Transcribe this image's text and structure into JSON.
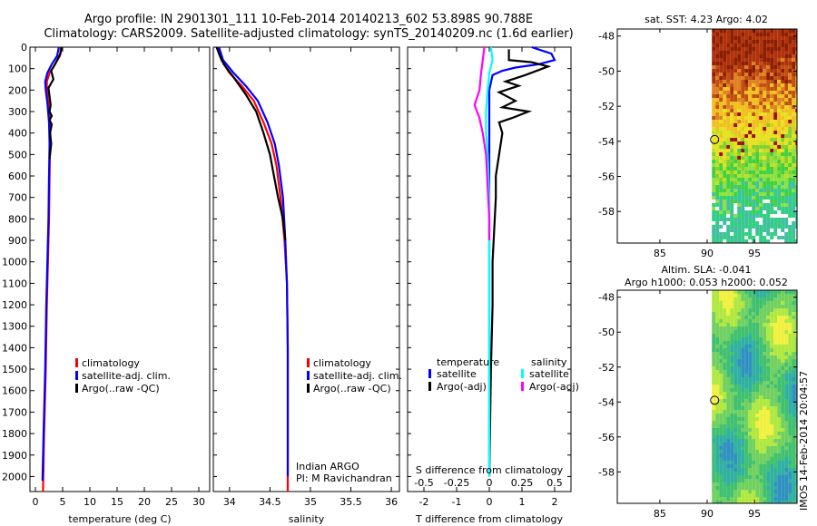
{
  "header": {
    "title_line1": "Argo profile: IN 2901301_111 10-Feb-2014 20140213_602 53.898S 90.788E",
    "title_line2": "Climatology: CARS2009. Satellite-adjusted climatology: synTS_20140209.nc (1.6d earlier)"
  },
  "colors": {
    "climatology": "#ff0000",
    "satellite": "#0000ff",
    "argo": "#000000",
    "sat_salinity": "#00ffff",
    "argo_salinity": "#ff00ff"
  },
  "chart_data": [
    {
      "type": "line",
      "name": "temperature-profile",
      "xlabel": "temperature (deg C)",
      "ylabel": "",
      "xlim": [
        -1,
        32
      ],
      "ylim": [
        2070,
        0
      ],
      "xticks": [
        0,
        5,
        10,
        15,
        20,
        25,
        30
      ],
      "yticks": [
        0,
        100,
        200,
        300,
        400,
        500,
        600,
        700,
        800,
        900,
        1000,
        1100,
        1200,
        1300,
        1400,
        1500,
        1600,
        1700,
        1800,
        1900,
        2000
      ],
      "legend": [
        "climatology",
        "satellite-adj. clim.",
        "Argo(..raw -QC)"
      ],
      "series": [
        {
          "name": "climatology",
          "color": "#ff0000",
          "points": [
            [
              4.7,
              0
            ],
            [
              4.5,
              40
            ],
            [
              3.6,
              80
            ],
            [
              2.6,
              120
            ],
            [
              2.1,
              160
            ],
            [
              2.1,
              200
            ],
            [
              2.4,
              260
            ],
            [
              2.7,
              350
            ],
            [
              2.7,
              450
            ],
            [
              2.6,
              600
            ],
            [
              2.5,
              800
            ],
            [
              2.3,
              1000
            ],
            [
              2.1,
              1200
            ],
            [
              1.9,
              1500
            ],
            [
              1.6,
              1800
            ],
            [
              1.4,
              2070
            ]
          ]
        },
        {
          "name": "satellite-adj. clim.",
          "color": "#0000ff",
          "points": [
            [
              4.3,
              0
            ],
            [
              4.0,
              40
            ],
            [
              3.0,
              80
            ],
            [
              2.2,
              120
            ],
            [
              1.8,
              160
            ],
            [
              1.9,
              200
            ],
            [
              2.2,
              260
            ],
            [
              2.5,
              350
            ],
            [
              2.6,
              450
            ],
            [
              2.5,
              600
            ],
            [
              2.4,
              800
            ],
            [
              2.2,
              1000
            ],
            [
              2.0,
              1200
            ],
            [
              1.8,
              1500
            ],
            [
              1.5,
              1800
            ],
            [
              1.3,
              2020
            ]
          ]
        },
        {
          "name": "Argo(..raw -QC)",
          "color": "#000000",
          "points": [
            [
              4.8,
              0
            ],
            [
              4.6,
              30
            ],
            [
              4.0,
              60
            ],
            [
              3.6,
              80
            ],
            [
              2.9,
              110
            ],
            [
              3.3,
              150
            ],
            [
              2.4,
              190
            ],
            [
              2.6,
              230
            ],
            [
              2.8,
              270
            ],
            [
              2.6,
              300
            ],
            [
              3.0,
              320
            ],
            [
              2.6,
              340
            ],
            [
              3.0,
              360
            ],
            [
              2.7,
              400
            ],
            [
              2.9,
              450
            ],
            [
              2.6,
              520
            ]
          ]
        }
      ]
    },
    {
      "type": "line",
      "name": "salinity-profile",
      "xlabel": "salinity",
      "ylabel": "",
      "xlim": [
        33.8,
        36.1
      ],
      "ylim": [
        2070,
        0
      ],
      "xticks": [
        34,
        34.5,
        35,
        35.5,
        36
      ],
      "xticklabels": [
        "34",
        "34.5",
        "35",
        "35.5",
        "36"
      ],
      "legend": [
        "climatology",
        "satellite-adj. clim.",
        "Argo(..raw -QC)"
      ],
      "annotations": [
        "Indian ARGO",
        "PI: M Ravichandran"
      ],
      "series": [
        {
          "name": "climatology",
          "color": "#ff0000",
          "points": [
            [
              33.85,
              0
            ],
            [
              33.9,
              60
            ],
            [
              34.0,
              120
            ],
            [
              34.15,
              180
            ],
            [
              34.3,
              250
            ],
            [
              34.42,
              350
            ],
            [
              34.52,
              450
            ],
            [
              34.58,
              550
            ],
            [
              34.63,
              700
            ],
            [
              34.68,
              900
            ],
            [
              34.71,
              1100
            ],
            [
              34.72,
              1400
            ],
            [
              34.72,
              1700
            ],
            [
              34.72,
              2070
            ]
          ]
        },
        {
          "name": "satellite-adj. clim.",
          "color": "#0000ff",
          "points": [
            [
              33.87,
              0
            ],
            [
              33.92,
              60
            ],
            [
              34.05,
              120
            ],
            [
              34.2,
              180
            ],
            [
              34.35,
              250
            ],
            [
              34.47,
              350
            ],
            [
              34.56,
              450
            ],
            [
              34.61,
              550
            ],
            [
              34.66,
              700
            ],
            [
              34.69,
              900
            ],
            [
              34.71,
              1100
            ],
            [
              34.72,
              1400
            ],
            [
              34.72,
              1700
            ],
            [
              34.72,
              2000
            ]
          ]
        },
        {
          "name": "Argo(..raw -QC)",
          "color": "#000000",
          "points": [
            [
              33.84,
              0
            ],
            [
              33.88,
              40
            ],
            [
              33.93,
              80
            ],
            [
              34.05,
              140
            ],
            [
              34.2,
              220
            ],
            [
              34.33,
              300
            ],
            [
              34.42,
              400
            ],
            [
              34.5,
              500
            ],
            [
              34.55,
              600
            ],
            [
              34.6,
              700
            ],
            [
              34.66,
              800
            ],
            [
              34.69,
              900
            ]
          ]
        }
      ]
    },
    {
      "type": "line",
      "name": "difference-from-climatology",
      "xlabel": "T difference from climatology",
      "x2label": "S difference from climatology",
      "xlim": [
        -2.5,
        2.5
      ],
      "ylim": [
        2070,
        0
      ],
      "xticks": [
        -2,
        -1,
        0,
        1,
        2
      ],
      "x2ticks": [
        -0.5,
        -0.25,
        0,
        0.25,
        0.5
      ],
      "x2ticklabels": [
        "-0.5",
        "-0.25",
        "0",
        "0.25",
        "0.5"
      ],
      "legend_headers": [
        "temperature",
        "salinity"
      ],
      "legend": [
        "satellite",
        "Argo(-adj)",
        "satellite",
        "Argo(-adj)"
      ],
      "series": [
        {
          "name": "temperature satellite",
          "color": "#0000ff",
          "points": [
            [
              1.3,
              0
            ],
            [
              1.5,
              10
            ],
            [
              1.9,
              30
            ],
            [
              2.0,
              60
            ],
            [
              1.5,
              80
            ],
            [
              0.8,
              95
            ],
            [
              0.4,
              110
            ],
            [
              0.1,
              130
            ],
            [
              0.0,
              200
            ],
            [
              0.0,
              2000
            ]
          ]
        },
        {
          "name": "temperature Argo(-adj)",
          "color": "#000000",
          "points": [
            [
              0.6,
              10
            ],
            [
              0.6,
              60
            ],
            [
              1.3,
              70
            ],
            [
              1.8,
              90
            ],
            [
              1.1,
              130
            ],
            [
              0.5,
              160
            ],
            [
              0.9,
              180
            ],
            [
              0.3,
              210
            ],
            [
              0.8,
              250
            ],
            [
              0.4,
              280
            ],
            [
              1.2,
              300
            ],
            [
              0.7,
              330
            ],
            [
              0.3,
              350
            ],
            [
              0.4,
              400
            ],
            [
              0.3,
              500
            ],
            [
              0.2,
              600
            ],
            [
              0.2,
              700
            ],
            [
              0.15,
              850
            ],
            [
              0.1,
              1000
            ],
            [
              0.1,
              1200
            ],
            [
              0.05,
              1500
            ],
            [
              0.0,
              2000
            ]
          ]
        },
        {
          "name": "salinity satellite",
          "color": "#00ffff",
          "points": [
            [
              0.05,
              0
            ],
            [
              0.1,
              60
            ],
            [
              0.0,
              120
            ],
            [
              -0.05,
              200
            ],
            [
              -0.1,
              300
            ],
            [
              -0.1,
              400
            ],
            [
              -0.05,
              500
            ],
            [
              0.0,
              700
            ],
            [
              0.0,
              2000
            ]
          ]
        },
        {
          "name": "salinity Argo(-adj)",
          "color": "#ff00ff",
          "points": [
            [
              -0.15,
              0
            ],
            [
              -0.2,
              60
            ],
            [
              -0.25,
              120
            ],
            [
              -0.3,
              200
            ],
            [
              -0.45,
              270
            ],
            [
              -0.3,
              330
            ],
            [
              -0.2,
              400
            ],
            [
              -0.1,
              500
            ],
            [
              -0.05,
              650
            ],
            [
              0.0,
              800
            ],
            [
              0.0,
              900
            ]
          ]
        }
      ]
    },
    {
      "type": "heatmap",
      "name": "satellite-sst-map",
      "title": "sat. SST: 4.23 Argo: 4.02",
      "xticks": [
        85,
        90,
        95
      ],
      "yticks": [
        -48,
        -50,
        -52,
        -54,
        -56,
        -58
      ],
      "xlim": [
        80.5,
        99.5
      ],
      "ylim": [
        -59.8,
        -47.6
      ],
      "data_xlim": [
        90.5,
        99.5
      ],
      "argo_position": [
        90.79,
        -53.9
      ]
    },
    {
      "type": "heatmap",
      "name": "altimetry-sla-map",
      "title": "Altim. SLA: -0.041",
      "subtitle": "Argo h1000: 0.053 h2000: 0.052",
      "xticks": [
        85,
        90,
        95
      ],
      "yticks": [
        -48,
        -50,
        -52,
        -54,
        -56,
        -58
      ],
      "xlim": [
        80.5,
        99.5
      ],
      "ylim": [
        -59.8,
        -47.6
      ],
      "data_xlim": [
        90.5,
        99.5
      ],
      "argo_position": [
        90.79,
        -53.9
      ]
    }
  ],
  "footer": {
    "stamp": "IMOS 14-Feb-2014 20:04:57"
  }
}
